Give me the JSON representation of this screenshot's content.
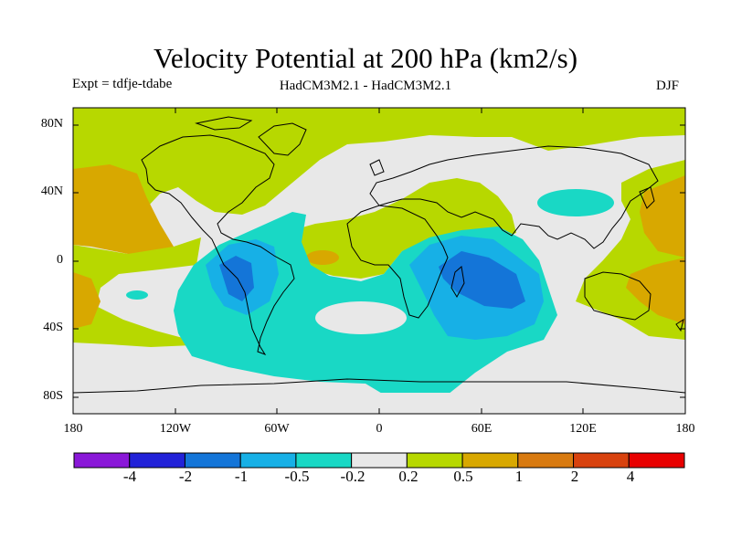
{
  "map": {
    "title": "Velocity Potential at 200 hPa (km2/s)",
    "subtitle_left": "Expt = tdfje-tdabe",
    "subtitle_center": "HadCM3M2.1 - HadCM3M2.1",
    "subtitle_right": "DJF",
    "projection": "cylindrical equidistant",
    "lon_range": [
      -180,
      180
    ],
    "lat_range": [
      -90,
      90
    ],
    "lat_ticks": [
      "80N",
      "40N",
      "0",
      "40S",
      "80S"
    ],
    "lon_ticks": [
      "180",
      "120W",
      "60W",
      "0",
      "60E",
      "120E",
      "180"
    ]
  },
  "colorbar": {
    "colors": [
      "#8a18d8",
      "#2222d8",
      "#1475d8",
      "#17b0e6",
      "#19d8c5",
      "#e8e8e8",
      "#b7d800",
      "#d8a800",
      "#d87a10",
      "#d8420e",
      "#e80000"
    ],
    "labels": [
      "-4",
      "-2",
      "-1",
      "-0.5",
      "-0.2",
      "0.2",
      "0.5",
      "1",
      "2",
      "4"
    ]
  }
}
